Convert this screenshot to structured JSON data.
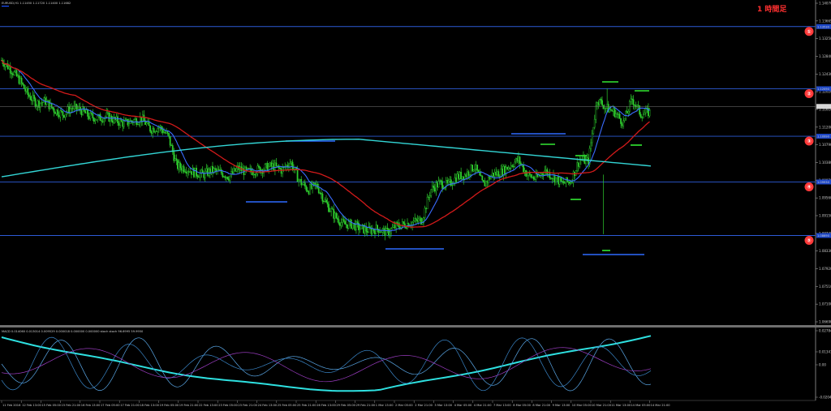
{
  "chart_data": {
    "type": "line",
    "header_text": "EURUSD,H1 1.11450 1.11720 1.11400 1.11682",
    "timeframe_note": "1 時間足",
    "x_labels": [
      "11 Feb 2016",
      "12 Feb 13:00",
      "15 Feb 05:00",
      "15 Feb 21:00",
      "16 Feb 13:00",
      "17 Feb 05:00",
      "17 Feb 21:00",
      "18 Feb 13:00",
      "19 Feb 05:00",
      "19 Feb 21:00",
      "22 Feb 13:00",
      "23 Feb 05:00",
      "23 Feb 21:00",
      "24 Feb 13:00",
      "25 Feb 05:00",
      "25 Feb 21:00",
      "26 Feb 13:00",
      "29 Feb 05:00",
      "29 Feb 21:00",
      "1 Mar 13:00",
      "2 Mar 05:00",
      "2 Mar 21:00",
      "3 Mar 13:00",
      "4 Mar 05:00",
      "4 Mar 21:00",
      "7 Mar 13:00",
      "8 Mar 05:00",
      "8 Mar 21:00",
      "9 Mar 13:00",
      "10 Mar 05:00",
      "10 Mar 21:00",
      "11 Mar 13:00",
      "14 Mar 05:00",
      "14 Mar 21:00"
    ],
    "y_ticks": [
      "1.14070",
      "1.13665",
      "1.13250",
      "1.12840",
      "1.12430",
      "1.12020",
      "1.11610",
      "1.11200",
      "1.10790",
      "1.10380",
      "1.09970",
      "1.09560",
      "1.09150",
      "1.08740",
      "1.08330",
      "1.07920",
      "1.07510",
      "1.07100",
      "1.06690"
    ],
    "price_scale": {
      "top": 1.1407,
      "bottom": 1.0669
    },
    "current_price": "1.11682",
    "horizontal_levels": [
      {
        "marker": "①",
        "price": 1.1353,
        "tag": "1.13530"
      },
      {
        "marker": "②",
        "price": 1.1209,
        "tag": "1.12090"
      },
      {
        "marker": "③",
        "price": 1.1099,
        "tag": "1.10990"
      },
      {
        "marker": "④",
        "price": 1.0993,
        "tag": "1.09930"
      },
      {
        "marker": "⑤",
        "price": 1.0869,
        "tag": "1.08690"
      }
    ],
    "close_series": [
      1.1275,
      1.1255,
      1.123,
      1.1195,
      1.1175,
      1.118,
      1.116,
      1.115,
      1.1165,
      1.116,
      1.1145,
      1.114,
      1.1145,
      1.1135,
      1.1128,
      1.1135,
      1.114,
      1.1115,
      1.112,
      1.11,
      1.103,
      1.1025,
      1.1015,
      1.101,
      1.102,
      1.1015,
      1.1005,
      1.1025,
      1.1015,
      1.102,
      1.1025,
      1.103,
      1.102,
      1.104,
      1.0995,
      1.0975,
      1.0985,
      1.0945,
      1.0915,
      1.0895,
      1.0895,
      1.0885,
      1.088,
      1.0885,
      1.0875,
      1.089,
      1.0895,
      1.09,
      1.0905,
      1.0975,
      1.099,
      1.0985,
      1.1005,
      1.101,
      1.103,
      1.0985,
      1.101,
      1.1015,
      1.103,
      1.1045,
      1.101,
      1.1,
      1.102,
      1.1005,
      1.099,
      1.0995,
      1.1045,
      1.104,
      1.1185,
      1.1165,
      1.1155,
      1.113,
      1.1185,
      1.115,
      1.1155
    ],
    "sub_window_label": "MACD 0.014060 0.013014 0.009529 0.000018 0.000000 0.000000 stoch stoch 96.6995 59.9950",
    "sub_y_labels": [
      "0.027849",
      "0.013412",
      "0.00",
      "-0.020469"
    ]
  }
}
